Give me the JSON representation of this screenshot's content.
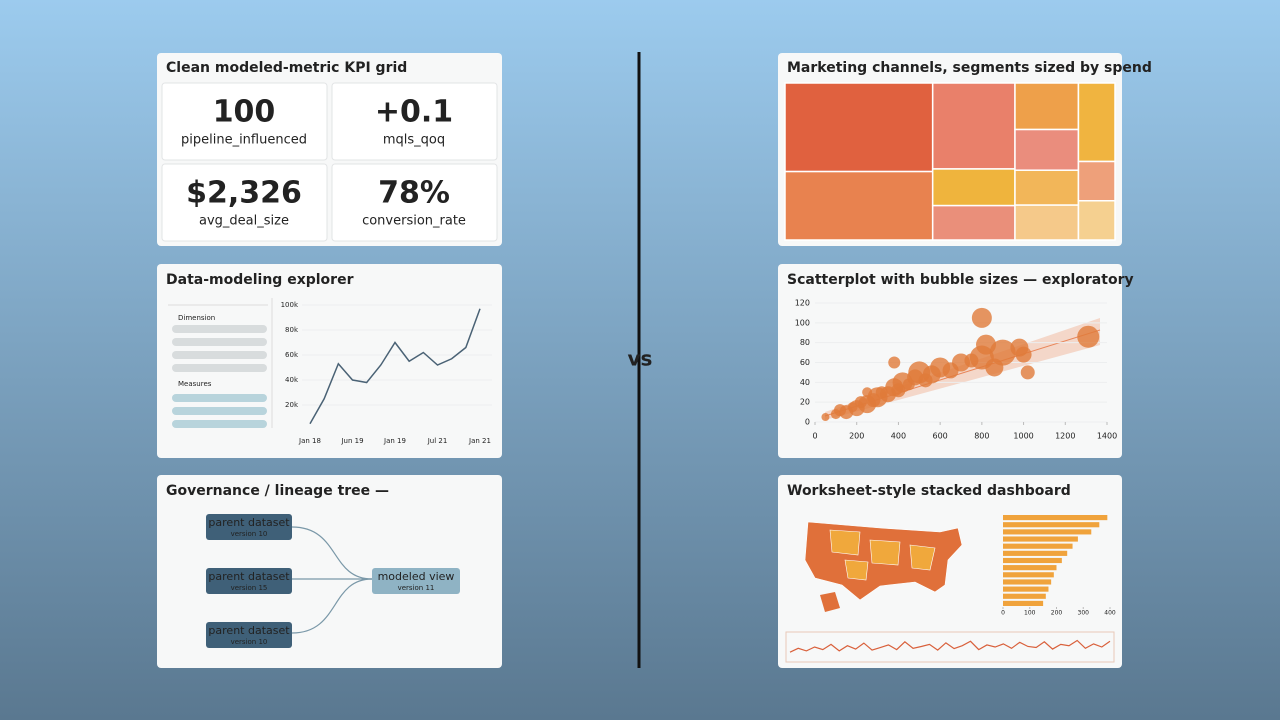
{
  "kpi_panel": {
    "title": "Clean modeled-metric KPI grid",
    "tiles": [
      {
        "value": "100",
        "label": "pipeline_influenced"
      },
      {
        "value": "+0.1",
        "label": "mqls_qoq"
      },
      {
        "value": "$2,326",
        "label": "avg_deal_size"
      },
      {
        "value": "78%",
        "label": "conversion_rate"
      }
    ]
  },
  "explorer_sidebar": {
    "groups": [
      "Dimension",
      "Measures"
    ]
  },
  "lineage_panel": {
    "title": "Governance / lineage tree —",
    "parents": [
      {
        "label": "parent dataset",
        "sub": "version 10"
      },
      {
        "label": "parent dataset",
        "sub": "version 15"
      },
      {
        "label": "parent dataset",
        "sub": "version 10"
      }
    ],
    "child": {
      "label": "modeled view",
      "sub": "version 11"
    }
  },
  "divider_label": "vs",
  "chart_data": [
    {
      "type": "line",
      "title": "Data-modeling explorer",
      "categories": [
        "Jan 18",
        null,
        null,
        "Jun 19",
        null,
        null,
        "Jan 19",
        null,
        null,
        "Jul 21",
        null,
        null,
        "Jan 21"
      ],
      "values": [
        5000,
        25000,
        53000,
        40000,
        38000,
        52000,
        70000,
        55000,
        62000,
        52000,
        57000,
        66000,
        97000
      ],
      "color": "#4a6275",
      "ylim": [
        0,
        100000
      ],
      "yticks": [
        {
          "value": 20000,
          "label": "20k"
        },
        {
          "value": 40000,
          "label": "40k"
        },
        {
          "value": 60000,
          "label": "60k"
        },
        {
          "value": 80000,
          "label": "80k"
        },
        {
          "value": 100000,
          "label": "100k"
        }
      ]
    },
    {
      "type": "treemap",
      "title": "Marketing channels, segments sized by spend",
      "groups": [
        {
          "values": [
            12760,
            9860
          ],
          "colors": [
            "#e0613f",
            "#e8824f"
          ]
        },
        {
          "values": [
            6900,
            2944,
            2760
          ],
          "colors": [
            "#e9806a",
            "#efb43d",
            "#ea8f7a"
          ]
        },
        {
          "values": [
            2880,
            2520,
            2160,
            2160
          ],
          "colors": [
            "#eea04a",
            "#ea8d7d",
            "#f2b659",
            "#f5c98a"
          ]
        },
        {
          "values": [
            2800,
            1400,
            1400
          ],
          "colors": [
            "#f0b440",
            "#eea07a",
            "#f5d090"
          ]
        }
      ]
    },
    {
      "type": "scatter",
      "title": "Scatterplot with bubble sizes — exploratory",
      "x": [
        50,
        100,
        120,
        150,
        180,
        200,
        220,
        250,
        280,
        300,
        320,
        350,
        380,
        400,
        420,
        450,
        480,
        500,
        530,
        560,
        600,
        650,
        700,
        750,
        800,
        820,
        900,
        980,
        1000,
        1020,
        800,
        1310,
        860,
        380,
        250
      ],
      "values": [
        5,
        8,
        12,
        10,
        15,
        14,
        20,
        18,
        22,
        25,
        30,
        28,
        35,
        32,
        40,
        38,
        45,
        50,
        42,
        48,
        55,
        52,
        60,
        62,
        65,
        78,
        70,
        75,
        68,
        50,
        105,
        86,
        55,
        60,
        30
      ],
      "sizes": [
        4,
        5,
        6,
        7,
        5,
        8,
        6,
        9,
        7,
        10,
        6,
        8,
        9,
        7,
        10,
        6,
        8,
        11,
        7,
        9,
        10,
        8,
        9,
        7,
        12,
        10,
        13,
        9,
        8,
        7,
        10,
        11,
        9,
        6,
        5
      ],
      "color": "#e07b39",
      "xlim": [
        0,
        1400
      ],
      "ylim": [
        0,
        120
      ],
      "xticks": [
        0,
        200,
        400,
        600,
        800,
        1000,
        1200,
        1400
      ],
      "yticks": [
        0,
        20,
        40,
        60,
        80,
        100,
        120
      ]
    },
    {
      "type": "bar",
      "title": "Worksheet-style stacked dashboard",
      "values": [
        390,
        360,
        330,
        280,
        260,
        240,
        220,
        200,
        190,
        180,
        170,
        160,
        150
      ],
      "color": "#f0a33c",
      "xlim": [
        0,
        400
      ],
      "xticks": [
        0,
        100,
        200,
        300,
        400
      ]
    },
    {
      "type": "sparkline",
      "values": [
        30,
        45,
        35,
        50,
        40,
        60,
        35,
        55,
        42,
        65,
        38,
        48,
        58,
        40,
        70,
        45,
        52,
        60,
        38,
        66,
        44,
        55,
        72,
        40,
        58,
        50,
        62,
        45,
        68,
        52,
        48,
        70,
        42,
        60,
        55,
        75,
        45,
        62,
        50,
        72
      ],
      "color": "#d9603b",
      "ylim": [
        0,
        100
      ]
    }
  ]
}
